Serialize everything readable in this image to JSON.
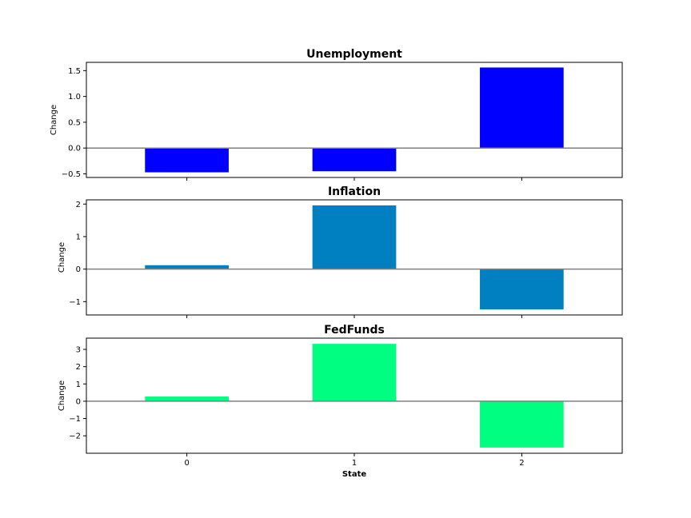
{
  "chart_data": [
    {
      "type": "bar",
      "title": "Unemployment",
      "ylabel": "Change",
      "xlabel": "",
      "categories": [
        "0",
        "1",
        "2"
      ],
      "values": [
        -0.47,
        -0.45,
        1.56
      ],
      "color": "#0000ff",
      "ylim": [
        -0.57,
        1.66
      ],
      "yticks": [
        -0.5,
        0.0,
        0.5,
        1.0,
        1.5
      ],
      "ytick_labels": [
        "−0.5",
        "0.0",
        "0.5",
        "1.0",
        "1.5"
      ],
      "show_xtick_labels": false
    },
    {
      "type": "bar",
      "title": "Inflation",
      "ylabel": "Change",
      "xlabel": "",
      "categories": [
        "0",
        "1",
        "2"
      ],
      "values": [
        0.12,
        1.96,
        -1.24
      ],
      "color": "#0080c0",
      "ylim": [
        -1.41,
        2.13
      ],
      "yticks": [
        -1,
        0,
        1,
        2
      ],
      "ytick_labels": [
        "−1",
        "0",
        "1",
        "2"
      ],
      "show_xtick_labels": false
    },
    {
      "type": "bar",
      "title": "FedFunds",
      "ylabel": "Change",
      "xlabel": "State",
      "categories": [
        "0",
        "1",
        "2"
      ],
      "values": [
        0.27,
        3.32,
        -2.68
      ],
      "color": "#00ff80",
      "ylim": [
        -3.01,
        3.65
      ],
      "yticks": [
        -2,
        -1,
        0,
        1,
        2,
        3
      ],
      "ytick_labels": [
        "−2",
        "−1",
        "0",
        "1",
        "2",
        "3"
      ],
      "show_xtick_labels": true
    }
  ]
}
